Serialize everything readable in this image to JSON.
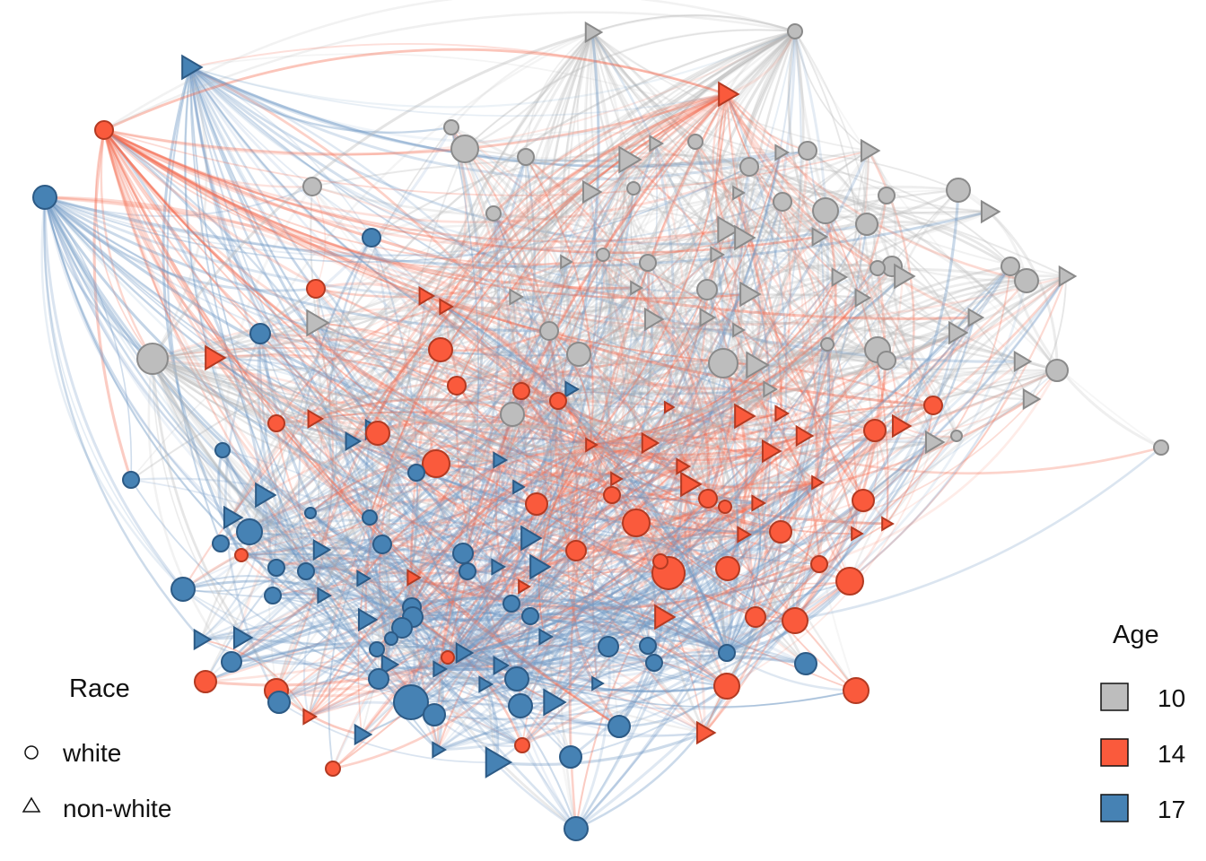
{
  "legend_race": {
    "title": "Race",
    "items": [
      {
        "label": "white",
        "shape": "circle"
      },
      {
        "label": "non-white",
        "shape": "triangle"
      }
    ]
  },
  "legend_age": {
    "title": "Age",
    "items": [
      {
        "label": "10",
        "color": "#bdbdbd"
      },
      {
        "label": "14",
        "color": "#fa5a3c"
      },
      {
        "label": "17",
        "color": "#4682b4"
      }
    ]
  },
  "colors": {
    "age_10": "#bdbdbd",
    "age_14": "#fa5a3c",
    "age_17": "#4682b4",
    "edge_grey": "#b8b8b8",
    "edge_red": "#f46a4e",
    "edge_blue": "#6f98c4"
  }
}
